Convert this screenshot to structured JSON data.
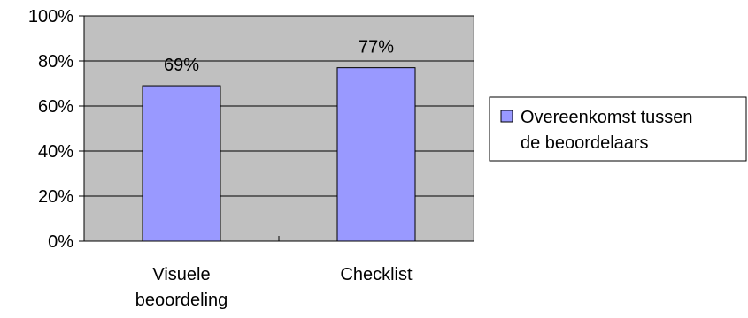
{
  "chart_data": {
    "type": "bar",
    "categories": [
      [
        "Visuele",
        "beoordeling"
      ],
      [
        "Checklist"
      ]
    ],
    "series": [
      {
        "name": [
          "Overeenkomst tussen",
          "de beoordelaars"
        ],
        "values": [
          69,
          77
        ],
        "data_labels": [
          "69%",
          "77%"
        ]
      }
    ],
    "ylim": [
      0,
      100
    ],
    "yticks": [
      "0%",
      "20%",
      "40%",
      "60%",
      "80%",
      "100%"
    ],
    "ytick_values": [
      0,
      20,
      40,
      60,
      80,
      100
    ],
    "grid": true,
    "legend_position": "right",
    "colors": {
      "plot_bg": "#c0c0c0",
      "bar": "#9999ff",
      "grid": "#000000"
    }
  }
}
